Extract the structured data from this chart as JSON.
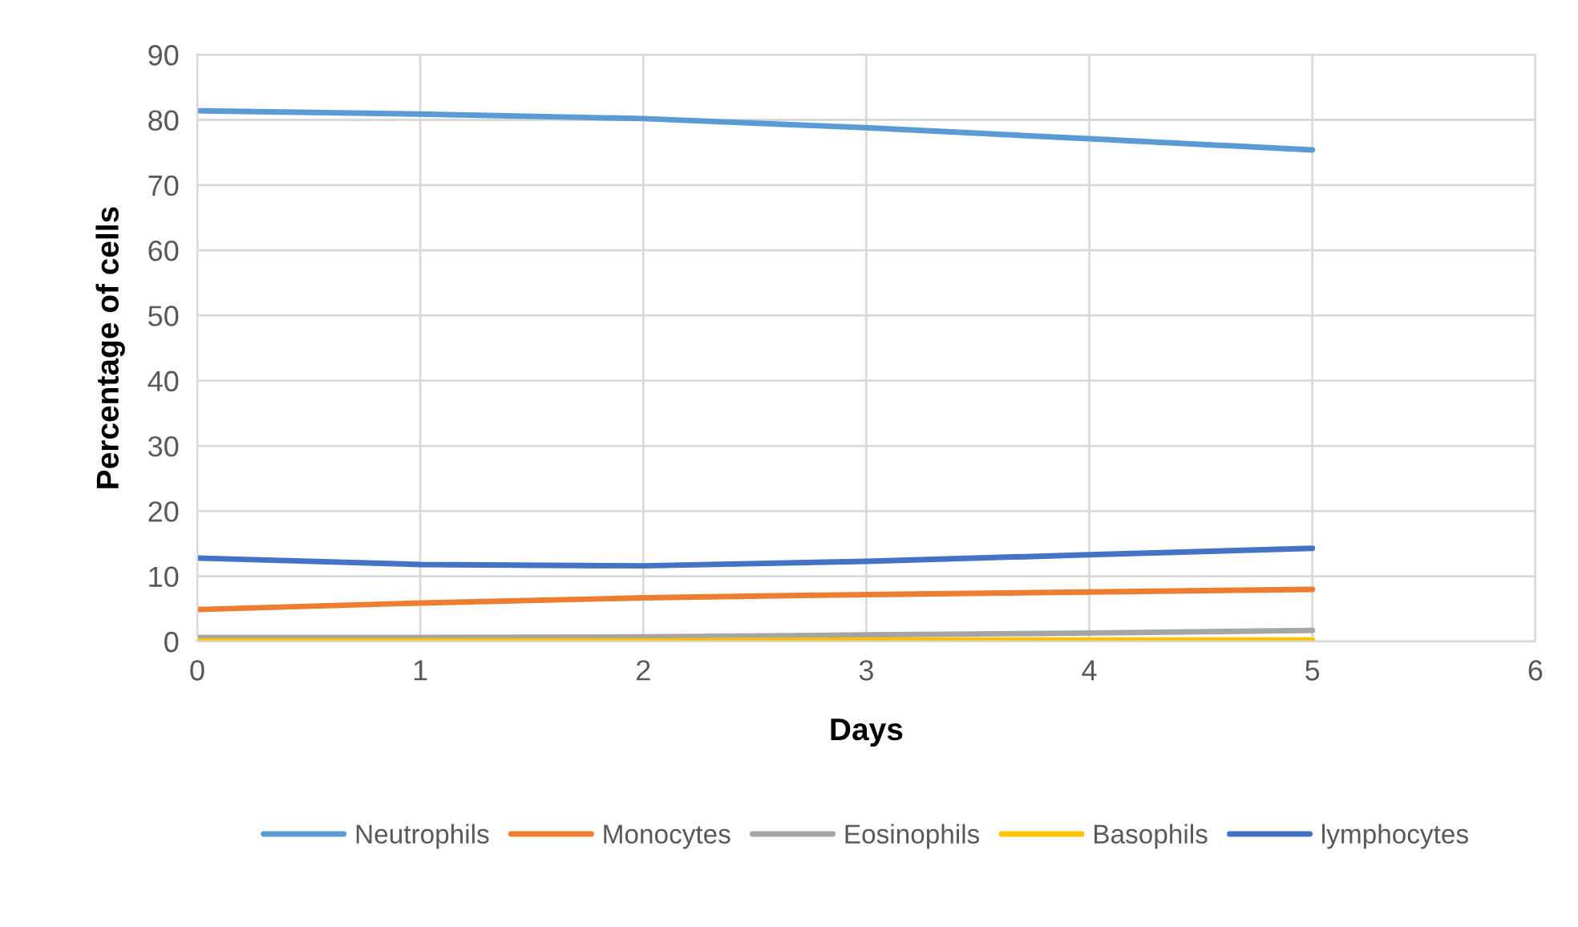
{
  "chart_data": {
    "type": "line",
    "xlabel": "Days",
    "ylabel": "Percentage of cells",
    "x": [
      0,
      1,
      2,
      3,
      4,
      5
    ],
    "series": [
      {
        "name": "Neutrophils",
        "color": "#5b9bd5",
        "values": [
          81.4,
          80.9,
          80.2,
          78.8,
          77.1,
          75.4
        ]
      },
      {
        "name": "Monocytes",
        "color": "#ed7d31",
        "values": [
          4.9,
          5.9,
          6.7,
          7.2,
          7.6,
          8.0
        ]
      },
      {
        "name": "Eosinophils",
        "color": "#a5a5a5",
        "values": [
          0.6,
          0.6,
          0.7,
          1.0,
          1.3,
          1.7
        ]
      },
      {
        "name": "Basophils",
        "color": "#ffc000",
        "values": [
          0.1,
          0.1,
          0.1,
          0.2,
          0.2,
          0.2
        ]
      },
      {
        "name": "lymphocytes",
        "color": "#4472c4",
        "values": [
          12.8,
          11.8,
          11.6,
          12.3,
          13.3,
          14.3
        ]
      }
    ],
    "xlim": [
      0,
      6
    ],
    "xticks": [
      0,
      1,
      2,
      3,
      4,
      5,
      6
    ],
    "ylim": [
      0,
      90
    ],
    "yticks": [
      0,
      10,
      20,
      30,
      40,
      50,
      60,
      70,
      80,
      90
    ],
    "grid": true,
    "legend": "bottom",
    "marker": "none",
    "line_style": "solid"
  }
}
